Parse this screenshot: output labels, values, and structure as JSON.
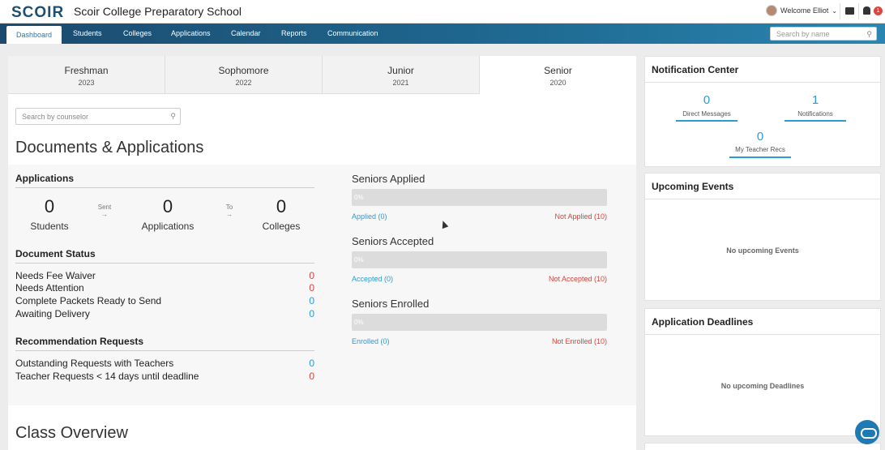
{
  "app": {
    "logo": "SCOIR",
    "school_name": "Scoir College Preparatory School",
    "welcome": "Welcome Elliot",
    "notification_badge": "1"
  },
  "nav": {
    "items": [
      "Dashboard",
      "Students",
      "Colleges",
      "Applications",
      "Calendar",
      "Reports",
      "Communication"
    ],
    "active": "Dashboard",
    "search_placeholder": "Search by name"
  },
  "tabs": [
    {
      "name": "Freshman",
      "year": "2023"
    },
    {
      "name": "Sophomore",
      "year": "2022"
    },
    {
      "name": "Junior",
      "year": "2021"
    },
    {
      "name": "Senior",
      "year": "2020",
      "active": true
    }
  ],
  "counselor_search_placeholder": "Search by counselor",
  "documents": {
    "heading": "Documents & Applications",
    "applications": {
      "title": "Applications",
      "students_count": "0",
      "students_label": "Students",
      "sent_label": "Sent",
      "applications_count": "0",
      "applications_label": "Applications",
      "to_label": "To",
      "colleges_count": "0",
      "colleges_label": "Colleges"
    },
    "document_status": {
      "title": "Document Status",
      "rows": [
        {
          "label": "Needs Fee Waiver",
          "value": "0",
          "color": "#d9443c"
        },
        {
          "label": "Needs Attention",
          "value": "0",
          "color": "#d9443c"
        },
        {
          "label": "Complete Packets Ready to Send",
          "value": "0",
          "color": "#2a9bd3"
        },
        {
          "label": "Awaiting Delivery",
          "value": "0",
          "color": "#2a9bd3"
        }
      ]
    },
    "recommendations": {
      "title": "Recommendation Requests",
      "rows": [
        {
          "label": "Outstanding Requests with Teachers",
          "value": "0",
          "color": "#2a9bd3"
        },
        {
          "label": "Teacher Requests < 14 days until deadline",
          "value": "0",
          "color": "#d9443c"
        }
      ]
    },
    "progress": [
      {
        "title": "Seniors Applied",
        "bar": "0%",
        "left": "Applied (0)",
        "right": "Not Applied (10)"
      },
      {
        "title": "Seniors Accepted",
        "bar": "0%",
        "left": "Accepted (0)",
        "right": "Not Accepted (10)"
      },
      {
        "title": "Seniors Enrolled",
        "bar": "0%",
        "left": "Enrolled (0)",
        "right": "Not Enrolled (10)"
      }
    ]
  },
  "class_overview": {
    "heading": "Class Overview"
  },
  "notification_center": {
    "title": "Notification Center",
    "direct_messages": {
      "count": "0",
      "label": "Direct Messages"
    },
    "notifications": {
      "count": "1",
      "label": "Notifications"
    },
    "teacher_recs": {
      "count": "0",
      "label": "My Teacher Recs"
    }
  },
  "upcoming_events": {
    "title": "Upcoming Events",
    "empty": "No upcoming Events"
  },
  "application_deadlines": {
    "title": "Application Deadlines",
    "empty": "No upcoming Deadlines"
  },
  "colors": {
    "brand": "#1d4f73",
    "accent": "#2a9bd3",
    "alert": "#d9443c"
  },
  "icons": [
    "avatar",
    "chevron-down-icon",
    "message-icon",
    "bell-icon",
    "search-icon",
    "chat-widget-icon"
  ]
}
